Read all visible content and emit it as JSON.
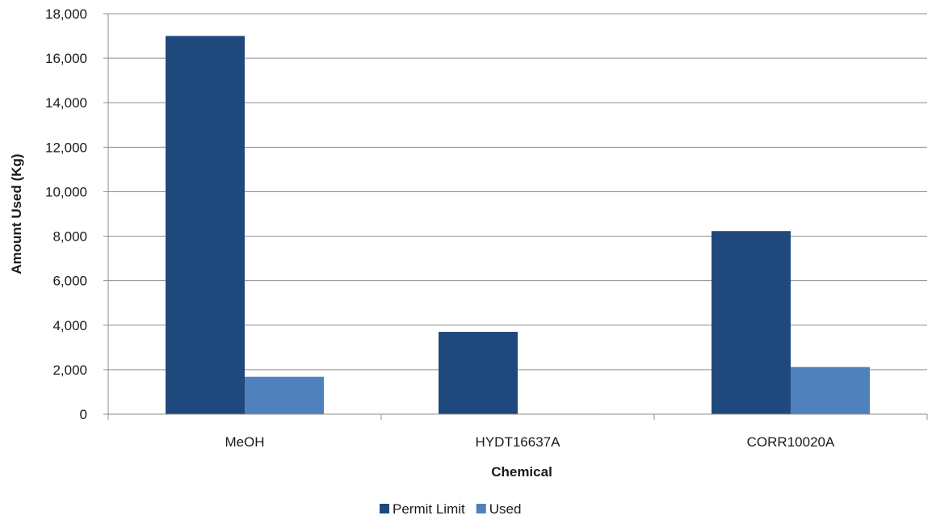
{
  "chart_data": {
    "type": "bar",
    "title": "",
    "xlabel": "Chemical",
    "ylabel": "Amount Used (Kg)",
    "categories": [
      "MeOH",
      "HYDT16637A",
      "CORR10020A"
    ],
    "series": [
      {
        "name": "Permit Limit",
        "color": "#1f497d",
        "values": [
          17000,
          3700,
          8230
        ]
      },
      {
        "name": "Used",
        "color": "#4f81bd",
        "values": [
          1680,
          20,
          2120
        ]
      }
    ],
    "ylim": [
      0,
      18000
    ],
    "yticks": [
      0,
      2000,
      4000,
      6000,
      8000,
      10000,
      12000,
      14000,
      16000,
      18000
    ],
    "ytick_labels": [
      "0",
      "2,000",
      "4,000",
      "6,000",
      "8,000",
      "10,000",
      "12,000",
      "14,000",
      "16,000",
      "18,000"
    ],
    "grid": true,
    "legend_position": "bottom"
  }
}
